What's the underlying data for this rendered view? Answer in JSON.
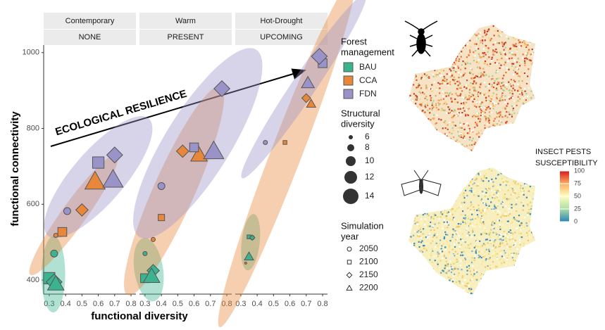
{
  "chart_data": {
    "type": "scatter",
    "x_label": "functional diversity",
    "y_label": "functional connectivity",
    "annotation": "ECOLOGICAL RESILIENCE",
    "xlim": [
      0.266,
      0.83
    ],
    "xticks": [
      0.3,
      0.4,
      0.5,
      0.6,
      0.7,
      0.8
    ],
    "ylim": [
      363,
      1020
    ],
    "yticks": [
      400,
      600,
      800,
      1000
    ],
    "series": [
      {
        "name": "BAU",
        "color": "#3cb38f"
      },
      {
        "name": "CCA",
        "color": "#e8873a"
      },
      {
        "name": "FDN",
        "color": "#9a93c8"
      }
    ],
    "management_title": [
      "Forest",
      "management"
    ],
    "size_title": [
      "Structural",
      "diversity"
    ],
    "size_legend": [
      6,
      8,
      10,
      12,
      14
    ],
    "year_title": [
      "Simulation",
      "year"
    ],
    "years": [
      2050,
      2100,
      2150,
      2200
    ],
    "year_shapes": [
      "circle",
      "square",
      "diamond",
      "triangle"
    ],
    "panels": [
      {
        "climate": "Contemporary",
        "scenario": "NONE",
        "groups": [
          {
            "x": [
              0.33,
              0.3,
              0.33,
              0.34
            ],
            "y": [
              470,
              405,
              395,
              390
            ],
            "size": [
              8,
              12,
              12,
              12
            ]
          },
          {
            "x": [
              0.34,
              0.38,
              0.5,
              0.58
            ],
            "y": [
              518,
              527,
              585,
              660
            ],
            "size": [
              6,
              10,
              10,
              14
            ]
          },
          {
            "x": [
              0.41,
              0.6,
              0.7,
              0.69
            ],
            "y": [
              582,
              710,
              730,
              665
            ],
            "size": [
              8,
              12,
              12,
              14
            ]
          }
        ]
      },
      {
        "climate": "Warm",
        "scenario": "PRESENT",
        "groups": [
          {
            "x": [
              0.3,
              0.3,
              0.35,
              0.34
            ],
            "y": [
              470,
              405,
              425,
              410
            ],
            "size": [
              6,
              10,
              10,
              12
            ]
          },
          {
            "x": [
              0.35,
              0.4,
              0.53,
              0.63
            ],
            "y": [
              507,
              565,
              740,
              730
            ],
            "size": [
              6,
              8,
              10,
              12
            ]
          },
          {
            "x": [
              0.4,
              0.6,
              0.77,
              0.72
            ],
            "y": [
              648,
              750,
              905,
              740
            ],
            "size": [
              8,
              10,
              12,
              14
            ]
          }
        ]
      },
      {
        "climate": "Hot-Drought",
        "scenario": "UPCOMING",
        "groups": [
          {
            "x": [
              0.37,
              0.35,
              0.37,
              0.35
            ],
            "y": [
              512,
              514,
              512,
              462
            ],
            "size": [
              6,
              6,
              6,
              8
            ]
          },
          {
            "x": [
              0.33,
              0.57,
              0.7,
              0.73
            ],
            "y": [
              445,
              763,
              880,
              865
            ],
            "size": [
              4,
              6,
              8,
              8
            ]
          },
          {
            "x": [
              0.45,
              0.8,
              0.78,
              0.71
            ],
            "y": [
              763,
              972,
              990,
              920
            ],
            "size": [
              6,
              10,
              12,
              10
            ]
          }
        ]
      }
    ]
  },
  "map_legend": {
    "title": [
      "INSECT PESTS",
      "SUSCEPTIBILITY"
    ],
    "lim": [
      0,
      100
    ],
    "ticks": [
      0,
      25,
      50,
      75,
      100
    ],
    "colors": [
      "#2b83ba",
      "#abdda4",
      "#ffffbf",
      "#fdae61",
      "#d7191c"
    ]
  }
}
